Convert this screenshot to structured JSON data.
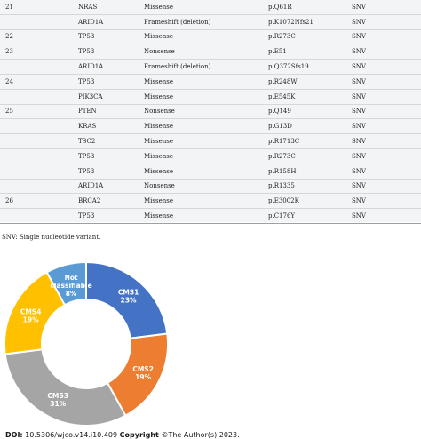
{
  "table": {
    "rows": [
      {
        "case": "21",
        "gene": "NRAS",
        "type": "Missense",
        "protein": "p.Q61R",
        "variant": "SNV"
      },
      {
        "case": "",
        "gene": "ARID1A",
        "type": "Frameshift (deletion)",
        "protein": "p.K1072Nfs21",
        "variant": "SNV"
      },
      {
        "case": "22",
        "gene": "TP53",
        "type": "Missense",
        "protein": "p.R273C",
        "variant": "SNV"
      },
      {
        "case": "23",
        "gene": "TP53",
        "type": "Nonsense",
        "protein": "p.E51",
        "variant": "SNV"
      },
      {
        "case": "",
        "gene": "ARID1A",
        "type": "Frameshift (deletion)",
        "protein": "p.Q372Sfs19",
        "variant": "SNV"
      },
      {
        "case": "24",
        "gene": "TP53",
        "type": "Missense",
        "protein": "p.R248W",
        "variant": "SNV"
      },
      {
        "case": "",
        "gene": "PIK3CA",
        "type": "Missense",
        "protein": "p.E545K",
        "variant": "SNV"
      },
      {
        "case": "25",
        "gene": "PTEN",
        "type": "Nonsense",
        "protein": "p.Q149",
        "variant": "SNV"
      },
      {
        "case": "",
        "gene": "KRAS",
        "type": "Missense",
        "protein": "p.G13D",
        "variant": "SNV"
      },
      {
        "case": "",
        "gene": "TSC2",
        "type": "Missense",
        "protein": "p.R1713C",
        "variant": "SNV"
      },
      {
        "case": "",
        "gene": "TP53",
        "type": "Missense",
        "protein": "p.R273C",
        "variant": "SNV"
      },
      {
        "case": "",
        "gene": "TP53",
        "type": "Missense",
        "protein": "p.R158H",
        "variant": "SNV"
      },
      {
        "case": "",
        "gene": "ARID1A",
        "type": "Nonsense",
        "protein": "p.R1335",
        "variant": "SNV"
      },
      {
        "case": "26",
        "gene": "BRCA2",
        "type": "Missense",
        "protein": "p.E3002K",
        "variant": "SNV"
      },
      {
        "case": "",
        "gene": "TP53",
        "type": "Missense",
        "protein": "p.C176Y",
        "variant": "SNV"
      }
    ]
  },
  "footnote": "SNV: Single nucleotide variant.",
  "chart_data": {
    "type": "pie",
    "categories": [
      "CMS1",
      "CMS2",
      "CMS3",
      "CMS4",
      "Not classifiable"
    ],
    "values": [
      23,
      19,
      31,
      19,
      8
    ],
    "slice_labels": [
      {
        "name": "CMS1",
        "pct": "23%"
      },
      {
        "name": "CMS2",
        "pct": "19%"
      },
      {
        "name": "CMS3",
        "pct": "31%"
      },
      {
        "name": "CMS4",
        "pct": "19%"
      },
      {
        "name_line1": "Not",
        "name_line2": "classifiable",
        "pct": "8%"
      }
    ],
    "colors": [
      "#4472c4",
      "#ed7d31",
      "#a5a5a5",
      "#ffc000",
      "#5b9bd5"
    ],
    "donut": true
  },
  "footer": {
    "doi_label": "DOI:",
    "doi_value": "10.5306/wjco.v14.i10.409",
    "copyright_label": "Copyright",
    "copyright_value": "©The Author(s) 2023."
  }
}
